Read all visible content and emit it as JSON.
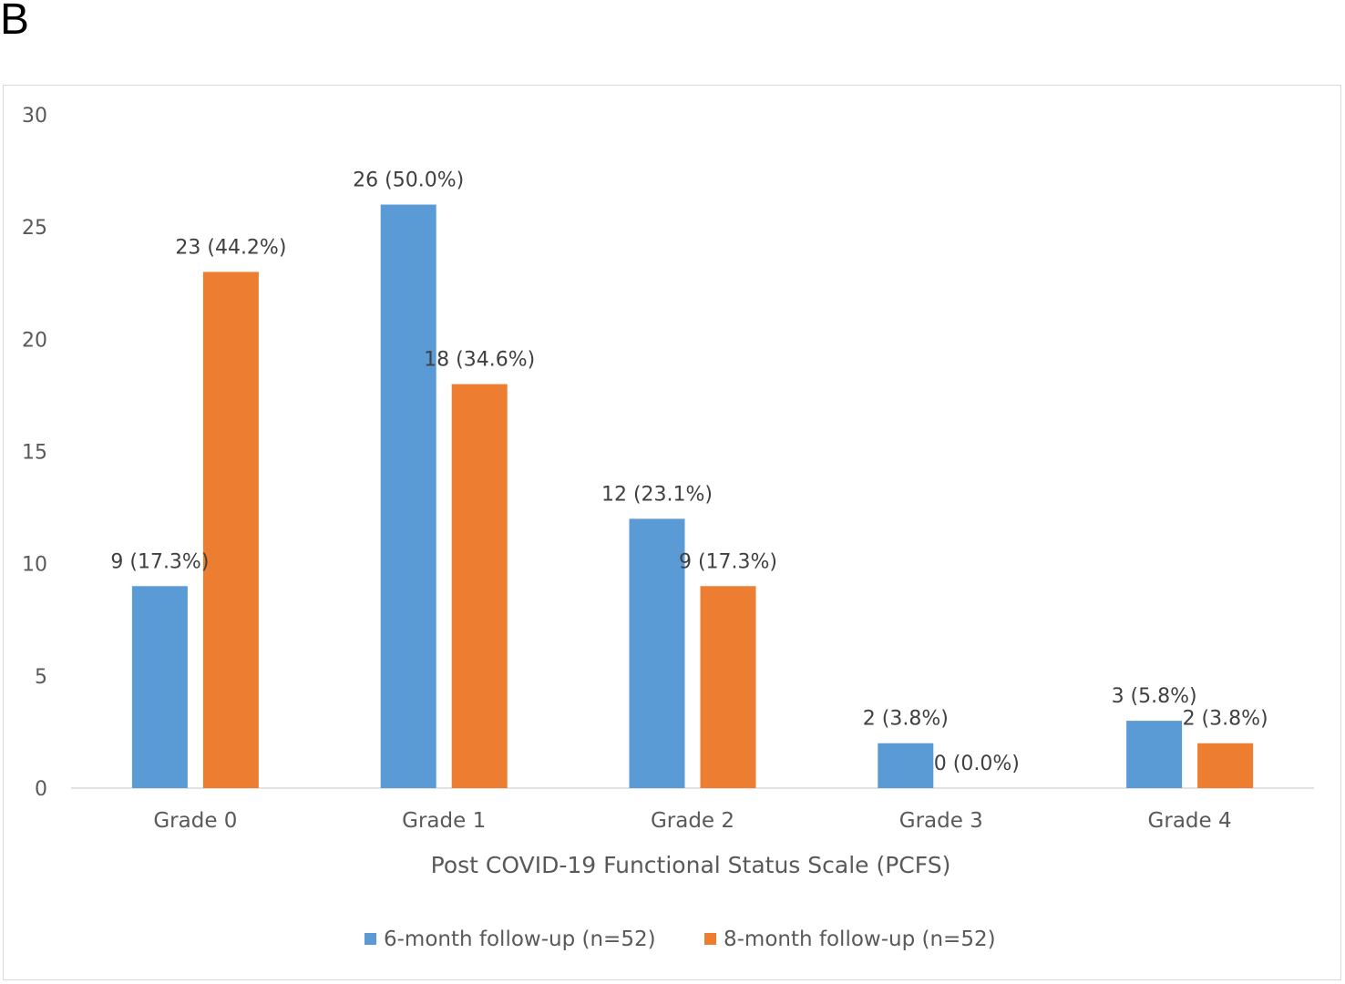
{
  "panel_label": "B",
  "chart_data": {
    "type": "bar",
    "title": "",
    "xlabel": "Post COVID-19 Functional Status Scale (PCFS)",
    "ylabel": "",
    "categories": [
      "Grade 0",
      "Grade 1",
      "Grade 2",
      "Grade 3",
      "Grade 4"
    ],
    "ylim": [
      0,
      30
    ],
    "yticks": [
      "0",
      "5",
      "10",
      "15",
      "20",
      "25",
      "30"
    ],
    "grid": false,
    "legend_position": "bottom",
    "series": [
      {
        "name": "6-month follow-up (n=52)",
        "color": "#5b9bd5",
        "values": [
          9,
          26,
          12,
          2,
          3
        ],
        "labels": [
          "9 (17.3%)",
          "26 (50.0%)",
          "12 (23.1%)",
          "2 (3.8%)",
          "3 (5.8%)"
        ]
      },
      {
        "name": "8-month follow-up (n=52)",
        "color": "#ed7d31",
        "values": [
          23,
          18,
          9,
          0,
          2
        ],
        "labels": [
          "23 (44.2%)",
          "18 (34.6%)",
          "9 (17.3%)",
          "0 (0.0%)",
          "2 (3.8%)"
        ]
      }
    ]
  }
}
